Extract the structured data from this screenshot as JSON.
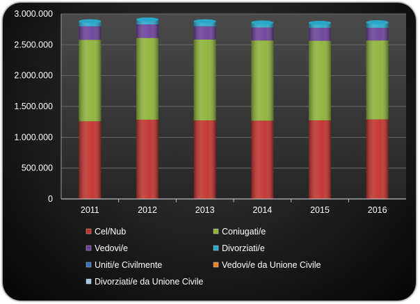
{
  "chart_data": {
    "type": "bar",
    "stacked": true,
    "title": "",
    "xlabel": "",
    "ylabel": "",
    "ylim": [
      0,
      3000000
    ],
    "yticks": [
      0,
      500000,
      1000000,
      1500000,
      2000000,
      2500000,
      3000000
    ],
    "ytick_labels": [
      "0",
      "500.000",
      "1.000.000",
      "1.500.000",
      "2.000.000",
      "2.500.000",
      "3.000.000"
    ],
    "grid": true,
    "legend_position": "bottom",
    "categories": [
      "2011",
      "2012",
      "2013",
      "2014",
      "2015",
      "2016"
    ],
    "series": [
      {
        "name": "Cel/Nub",
        "color": "#c0302b",
        "values": [
          1260000,
          1285000,
          1275000,
          1270000,
          1275000,
          1290000
        ]
      },
      {
        "name": "Coniugati/e",
        "color": "#8cb238",
        "values": [
          1320000,
          1325000,
          1310000,
          1300000,
          1290000,
          1280000
        ]
      },
      {
        "name": "Vedovi/e",
        "color": "#6a3f99",
        "values": [
          220000,
          220000,
          215000,
          210000,
          210000,
          205000
        ]
      },
      {
        "name": "Divorziati/e",
        "color": "#2ba7c9",
        "values": [
          80000,
          80000,
          80000,
          80000,
          80000,
          90000
        ]
      },
      {
        "name": "Uniti/e Civilmente",
        "color": "#3a6fb8",
        "values": [
          0,
          0,
          0,
          0,
          0,
          0
        ]
      },
      {
        "name": "Vedovi/e da Unione Civile",
        "color": "#e8832a",
        "values": [
          0,
          0,
          0,
          0,
          0,
          0
        ]
      },
      {
        "name": "Divorziati/e da Unione Civile",
        "color": "#a6c3e3",
        "values": [
          0,
          0,
          0,
          0,
          0,
          0
        ]
      }
    ]
  }
}
